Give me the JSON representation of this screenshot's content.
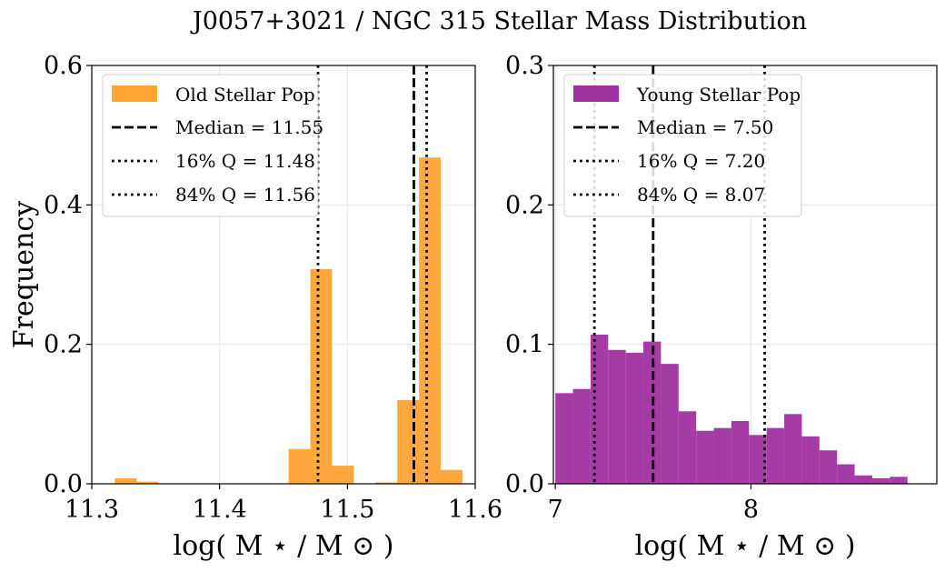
{
  "figure": {
    "title": "J0057+3021 / NGC 315 Stellar Mass Distribution"
  },
  "chart_data": [
    {
      "type": "bar",
      "subtype": "histogram",
      "xlabel": "log( M ⋆ / M ⊙ )",
      "ylabel": "Frequency",
      "xlim": [
        11.3,
        11.6
      ],
      "ylim": [
        0,
        0.6
      ],
      "xticks": [
        11.3,
        11.4,
        11.5,
        11.6
      ],
      "xtick_labels": [
        "11.3",
        "11.4",
        "11.5",
        "11.6"
      ],
      "yticks": [
        0.0,
        0.2,
        0.4,
        0.6
      ],
      "ytick_labels": [
        "0.0",
        "0.2",
        "0.4",
        "0.6"
      ],
      "grid": true,
      "legend_position": "upper-left",
      "color": "#ffa333",
      "series": [
        {
          "name": "Old Stellar Pop",
          "bin_edges": [
            11.318,
            11.335,
            11.352,
            11.369,
            11.386,
            11.403,
            11.42,
            11.437,
            11.454,
            11.471,
            11.488,
            11.505,
            11.522,
            11.539,
            11.556,
            11.573,
            11.59
          ],
          "values": [
            0.008,
            0.003,
            0,
            0,
            0,
            0,
            0,
            0,
            0.05,
            0.308,
            0.026,
            0,
            0.002,
            0.12,
            0.468,
            0.02
          ]
        }
      ],
      "lines": [
        {
          "label": "Median = 11.55",
          "x": 11.552,
          "style": "dashed"
        },
        {
          "label": "16% Q = 11.48",
          "x": 11.477,
          "style": "dotted"
        },
        {
          "label": "84% Q = 11.56",
          "x": 11.562,
          "style": "dotted"
        }
      ]
    },
    {
      "type": "bar",
      "subtype": "histogram",
      "xlabel": "log( M ⋆ / M ⊙ )",
      "ylabel": "",
      "xlim": [
        6.99,
        8.95
      ],
      "ylim": [
        0,
        0.3
      ],
      "xticks": [
        7,
        8
      ],
      "xtick_labels": [
        "7",
        "8"
      ],
      "yticks": [
        0.0,
        0.1,
        0.2,
        0.3
      ],
      "ytick_labels": [
        "0.0",
        "0.1",
        "0.2",
        "0.3"
      ],
      "grid": true,
      "legend_position": "upper-left",
      "color": "#a032a0",
      "series": [
        {
          "name": "Young Stellar Pop",
          "bin_edges": [
            7.0,
            7.09,
            7.18,
            7.27,
            7.36,
            7.45,
            7.54,
            7.63,
            7.72,
            7.81,
            7.9,
            7.99,
            8.08,
            8.17,
            8.26,
            8.35,
            8.44,
            8.53,
            8.62,
            8.71,
            8.8
          ],
          "values": [
            0.065,
            0.068,
            0.107,
            0.096,
            0.094,
            0.102,
            0.086,
            0.052,
            0.038,
            0.04,
            0.045,
            0.035,
            0.04,
            0.05,
            0.034,
            0.024,
            0.014,
            0.006,
            0.004,
            0.005
          ]
        }
      ],
      "lines": [
        {
          "label": "Median = 7.50",
          "x": 7.5,
          "style": "dashed"
        },
        {
          "label": "16% Q = 7.20",
          "x": 7.2,
          "style": "dotted"
        },
        {
          "label": "84% Q = 8.07",
          "x": 8.07,
          "style": "dotted"
        }
      ]
    }
  ]
}
